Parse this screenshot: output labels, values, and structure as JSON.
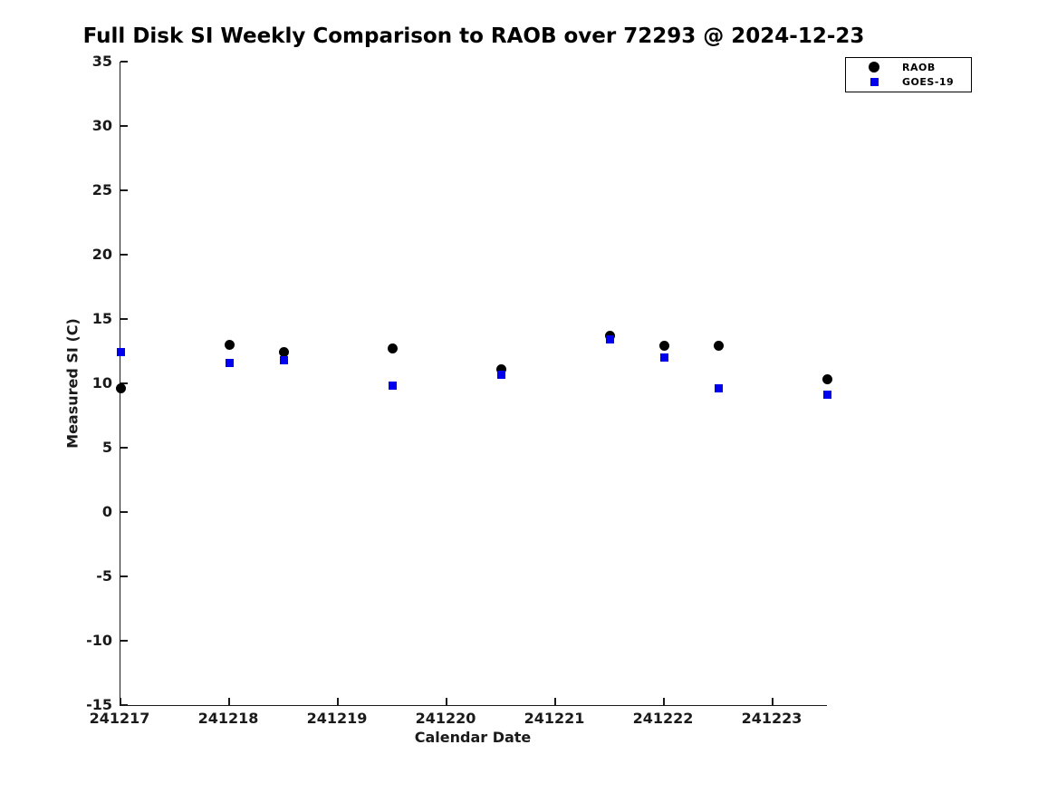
{
  "figure": {
    "title": "Full Disk SI Weekly Comparison to RAOB over 72293 @ 2024-12-23"
  },
  "legend": {
    "items": [
      {
        "label": "RAOB",
        "marker": "circle",
        "color": "#000000"
      },
      {
        "label": "GOES-19",
        "marker": "square",
        "color": "#0000ee"
      }
    ]
  },
  "chart_data": {
    "type": "scatter",
    "title": "Full Disk SI Weekly Comparison to RAOB over 72293 @ 2024-12-23",
    "xlabel": "Calendar Date",
    "ylabel": "Measured SI (C)",
    "xlim": [
      241217,
      241223.5
    ],
    "ylim": [
      -15,
      35
    ],
    "x_ticks": [
      241217,
      241218,
      241219,
      241220,
      241221,
      241222,
      241223
    ],
    "y_ticks": [
      35,
      30,
      25,
      20,
      15,
      10,
      5,
      0,
      -5,
      -10,
      -15
    ],
    "grid": false,
    "legend_position": "upper-right-outside",
    "x": [
      241217.0,
      241218.0,
      241218.5,
      241219.5,
      241220.5,
      241221.5,
      241222.0,
      241222.5,
      241223.5
    ],
    "series": [
      {
        "name": "RAOB",
        "marker": "circle",
        "color": "#000000",
        "marker_size": 11,
        "values": [
          9.6,
          13.0,
          12.4,
          12.7,
          11.1,
          13.7,
          12.9,
          12.9,
          10.3
        ]
      },
      {
        "name": "GOES-19",
        "marker": "square",
        "color": "#0000ee",
        "marker_size": 9,
        "values": [
          12.4,
          11.6,
          11.8,
          9.8,
          10.7,
          13.4,
          12.0,
          9.6,
          9.1
        ]
      }
    ]
  }
}
